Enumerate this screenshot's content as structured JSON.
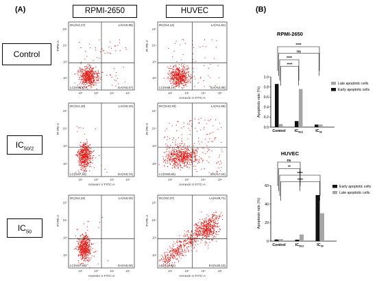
{
  "panel_a_letter": "(A)",
  "panel_b_letter": "(B)",
  "columns": [
    "RPMI-2650",
    "HUVEC"
  ],
  "rows": [
    {
      "main": "Control",
      "sub": ""
    },
    {
      "main": "IC",
      "sub": "50/2"
    },
    {
      "main": "IC",
      "sub": "50"
    }
  ],
  "flow_plots": [
    {
      "id": "rpmi-control",
      "ylabel": "PIPE-A",
      "xlabel": "",
      "dc": "DC(%3,17)",
      "la": "LA(%0,89)",
      "lc": "LC(%95,87)",
      "ea": "EA(%0,07)",
      "pattern": "cluster-low"
    },
    {
      "id": "huvec-control",
      "ylabel": "PI PE-A",
      "xlabel": "Annexin V FITC-A",
      "dc": "DC(%4,14)",
      "la": "LA(%1,81)",
      "lc": "LC(%92,17)",
      "ea": "EA(%2,08)",
      "pattern": "cluster-low"
    },
    {
      "id": "rpmi-ic502",
      "ylabel": "PI PE-A",
      "xlabel": "Annexin V FITC-A",
      "dc": "DC(%1,18)",
      "la": "LA(%0,15)",
      "lc": "LC(%97,93)",
      "ea": "EA(%0,74)",
      "pattern": "cluster-tight"
    },
    {
      "id": "huvec-ic502",
      "ylabel": "PI PE-A",
      "xlabel": "Annexin V FITC-A",
      "dc": "DC(%10,33)",
      "la": "LA(%1,59)",
      "lc": "LC(%80,84)",
      "ea": "EA(%7,24)",
      "pattern": "cluster-spread"
    },
    {
      "id": "rpmi-ic50",
      "ylabel": "PI PE-A",
      "xlabel": "Annexin V FITC-A",
      "dc": "DC(%2,34)",
      "la": "LA(%0,00)",
      "lc": "LC(%97,66)",
      "ea": "EA(%0,00)",
      "pattern": "cluster-tight"
    },
    {
      "id": "huvec-ic50",
      "ylabel": "PI PE-A",
      "xlabel": "Annexin V FITC-A",
      "dc": "DC(%0,37)",
      "la": "LA(%49,71)",
      "lc": "LC(%19,82)",
      "ea": "EA(%30,10)",
      "pattern": "diagonal"
    }
  ],
  "flow_tick_labels": [
    "10²",
    "10³",
    "10⁴",
    "10⁵"
  ],
  "colors": {
    "dots": "#e0201b",
    "black": "#111111",
    "grey": "#a6a6a6"
  },
  "chart_data": [
    {
      "type": "bar",
      "title": "RPMI-2650",
      "ylabel": "Apoptosis rate (%)",
      "xlabel": "",
      "ylim": [
        0,
        1.0
      ],
      "yticks": [
        0,
        0.2,
        0.4,
        0.6,
        0.8,
        1.0
      ],
      "ytick_labels": [
        "0.0",
        "0.2",
        "0.4",
        "0.6",
        "0.8",
        "1.0"
      ],
      "categories": [
        {
          "main": "Control",
          "sub": ""
        },
        {
          "main": "IC",
          "sub": "50/2"
        },
        {
          "main": "IC",
          "sub": "50"
        }
      ],
      "series": [
        {
          "name": "Early apoptotic cells",
          "color": "#111111",
          "values": [
            0.86,
            0.12,
            0.05
          ]
        },
        {
          "name": "Late apoptotic cells",
          "color": "#a6a6a6",
          "values": [
            0.06,
            0.76,
            0.05
          ]
        }
      ],
      "legend_order": [
        "Late apoptotic cells",
        "Early apoptotic cells"
      ],
      "legend_position": "right",
      "significance": [
        {
          "from": 0,
          "to": 2,
          "label": "****"
        },
        {
          "from": 0,
          "to": 2,
          "label": "ns"
        },
        {
          "from": 0,
          "to": 1,
          "label": "****"
        },
        {
          "from": 0,
          "to": 1,
          "label": "****"
        }
      ]
    },
    {
      "type": "bar",
      "title": "HUVEC",
      "ylabel": "Apoptosis rate (%)",
      "xlabel": "",
      "ylim": [
        0,
        60
      ],
      "yticks": [
        0,
        20,
        40,
        60
      ],
      "ytick_labels": [
        "0",
        "20",
        "40",
        "60"
      ],
      "categories": [
        {
          "main": "Control",
          "sub": ""
        },
        {
          "main": "IC",
          "sub": "50/2"
        },
        {
          "main": "IC",
          "sub": "50"
        }
      ],
      "series": [
        {
          "name": "Early apoptotic cells",
          "color": "#111111",
          "values": [
            1.8,
            1.6,
            49.7
          ]
        },
        {
          "name": "Late apoptotic cells",
          "color": "#a6a6a6",
          "values": [
            2.1,
            7.2,
            30.1
          ]
        }
      ],
      "legend_order": [
        "Early apoptotic cells",
        "Late apoptotic cells"
      ],
      "legend_position": "right",
      "significance": [
        {
          "from": 0,
          "to": 1,
          "label": "ns"
        },
        {
          "from": 0,
          "to": 1,
          "label": "**"
        },
        {
          "from": 0,
          "to": 2,
          "label": "****"
        },
        {
          "from": 0,
          "to": 2,
          "label": "****"
        }
      ]
    }
  ]
}
